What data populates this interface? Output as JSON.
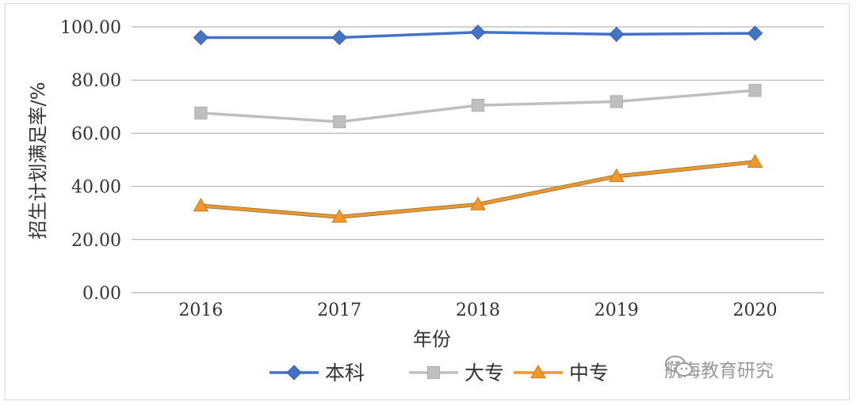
{
  "chart_data": {
    "type": "line",
    "xlabel": "年份",
    "ylabel": "招生计划满足率/%",
    "categories": [
      "2016",
      "2017",
      "2018",
      "2019",
      "2020"
    ],
    "ylim": [
      0,
      100
    ],
    "yticks": [
      "0.00",
      "20.00",
      "40.00",
      "60.00",
      "80.00",
      "100.00"
    ],
    "grid": true,
    "legend_position": "bottom",
    "series": [
      {
        "name": "本科",
        "values": [
          96.0,
          96.0,
          98.0,
          97.2,
          97.6
        ],
        "color": "#4472c4",
        "marker": "diamond"
      },
      {
        "name": "大专",
        "values": [
          67.6,
          64.3,
          70.5,
          71.9,
          76.1
        ],
        "color": "#bfbfbf",
        "marker": "square"
      },
      {
        "name": "中专",
        "values": [
          32.7,
          28.5,
          33.2,
          43.8,
          49.2
        ],
        "color": "#f0982c",
        "marker": "triangle"
      }
    ]
  },
  "watermark": {
    "text": "航海教育研究",
    "icon": "wechat-icon"
  }
}
